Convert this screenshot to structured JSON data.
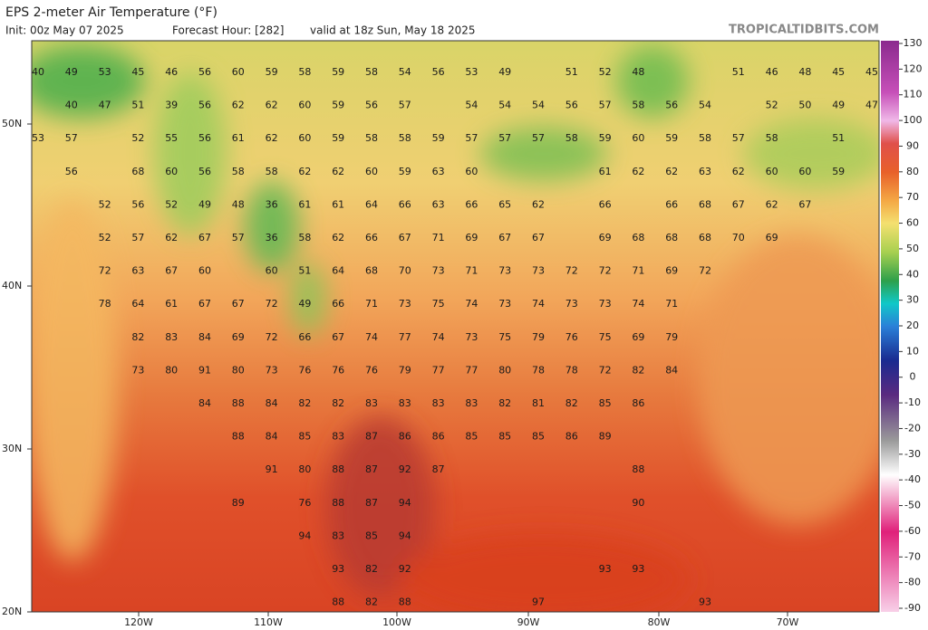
{
  "header": {
    "title": "EPS 2-meter Air Temperature (°F)",
    "init": "Init: 00z May 07 2025",
    "forecast_hour": "Forecast Hour: [282]",
    "valid": "valid at 18z Sun, May 18 2025"
  },
  "watermark": "TROPICALTIDBITS.COM",
  "colorbar": {
    "ticks": [
      130,
      120,
      110,
      100,
      90,
      80,
      70,
      60,
      50,
      40,
      30,
      20,
      10,
      0,
      -10,
      -20,
      -30,
      -40,
      -50,
      -60,
      -70,
      -80,
      -90
    ]
  },
  "lat_labels": [
    "50N",
    "40N",
    "30N",
    "20N"
  ],
  "lon_labels": [
    "120W",
    "110W",
    "100W",
    "90W",
    "80W",
    "70W"
  ],
  "grid": [
    [
      40,
      49,
      53,
      45,
      46,
      56,
      60,
      59,
      58,
      59,
      58,
      54,
      56,
      53,
      49,
      null,
      51,
      52,
      48,
      null,
      null,
      51,
      46,
      48,
      45,
      45
    ],
    [
      null,
      40,
      47,
      51,
      39,
      56,
      62,
      62,
      60,
      59,
      56,
      57,
      null,
      54,
      54,
      54,
      56,
      57,
      58,
      56,
      54,
      null,
      52,
      50,
      49,
      47
    ],
    [
      53,
      57,
      null,
      52,
      55,
      56,
      61,
      62,
      60,
      59,
      58,
      58,
      59,
      57,
      57,
      57,
      58,
      59,
      60,
      59,
      58,
      57,
      58,
      null,
      51,
      null
    ],
    [
      null,
      56,
      null,
      68,
      60,
      56,
      58,
      58,
      62,
      62,
      60,
      59,
      63,
      60,
      null,
      null,
      null,
      61,
      62,
      62,
      63,
      62,
      60,
      60,
      59,
      null
    ],
    [
      null,
      null,
      52,
      56,
      52,
      49,
      48,
      36,
      61,
      61,
      64,
      66,
      63,
      66,
      65,
      62,
      null,
      66,
      null,
      66,
      68,
      67,
      62,
      67,
      null,
      null
    ],
    [
      null,
      null,
      52,
      57,
      62,
      67,
      57,
      36,
      58,
      62,
      66,
      67,
      71,
      69,
      67,
      67,
      null,
      69,
      68,
      68,
      68,
      70,
      69,
      null,
      null,
      null
    ],
    [
      null,
      null,
      72,
      63,
      67,
      60,
      null,
      60,
      51,
      64,
      68,
      70,
      73,
      71,
      73,
      73,
      72,
      72,
      71,
      69,
      72,
      null,
      null,
      null,
      null,
      null
    ],
    [
      null,
      null,
      78,
      64,
      61,
      67,
      67,
      72,
      49,
      66,
      71,
      73,
      75,
      74,
      73,
      74,
      73,
      73,
      74,
      71,
      null,
      null,
      null,
      null,
      null,
      null
    ],
    [
      null,
      null,
      null,
      82,
      83,
      84,
      69,
      72,
      66,
      67,
      74,
      77,
      74,
      73,
      75,
      79,
      76,
      75,
      69,
      79,
      null,
      null,
      null,
      null,
      null,
      null
    ],
    [
      null,
      null,
      null,
      73,
      80,
      91,
      80,
      73,
      76,
      76,
      76,
      79,
      77,
      77,
      80,
      78,
      78,
      72,
      82,
      84,
      null,
      null,
      null,
      null,
      null,
      null
    ],
    [
      null,
      null,
      null,
      null,
      null,
      84,
      88,
      84,
      82,
      82,
      83,
      83,
      83,
      83,
      82,
      81,
      82,
      85,
      86,
      null,
      null,
      null,
      null,
      null,
      null,
      null
    ],
    [
      null,
      null,
      null,
      null,
      null,
      null,
      88,
      84,
      85,
      83,
      87,
      86,
      86,
      85,
      85,
      85,
      86,
      89,
      null,
      null,
      null,
      null,
      null,
      null,
      null,
      null
    ],
    [
      null,
      null,
      null,
      null,
      null,
      null,
      null,
      91,
      80,
      88,
      87,
      92,
      87,
      null,
      null,
      null,
      null,
      null,
      88,
      null,
      null,
      null,
      null,
      null,
      null,
      null
    ],
    [
      null,
      null,
      null,
      null,
      null,
      null,
      89,
      null,
      76,
      88,
      87,
      94,
      null,
      null,
      null,
      null,
      null,
      null,
      90,
      null,
      null,
      null,
      null,
      null,
      null,
      null
    ],
    [
      null,
      null,
      null,
      null,
      null,
      null,
      null,
      null,
      94,
      83,
      85,
      94,
      null,
      null,
      null,
      null,
      null,
      null,
      null,
      null,
      null,
      null,
      null,
      null,
      null,
      null
    ],
    [
      null,
      null,
      null,
      null,
      null,
      null,
      null,
      null,
      null,
      93,
      82,
      92,
      null,
      null,
      null,
      null,
      null,
      93,
      93,
      null,
      null,
      null,
      null,
      null,
      null,
      null
    ],
    [
      null,
      null,
      null,
      null,
      null,
      null,
      null,
      null,
      null,
      88,
      82,
      88,
      null,
      null,
      null,
      97,
      null,
      null,
      null,
      null,
      93,
      null,
      null,
      null,
      null,
      null
    ]
  ]
}
